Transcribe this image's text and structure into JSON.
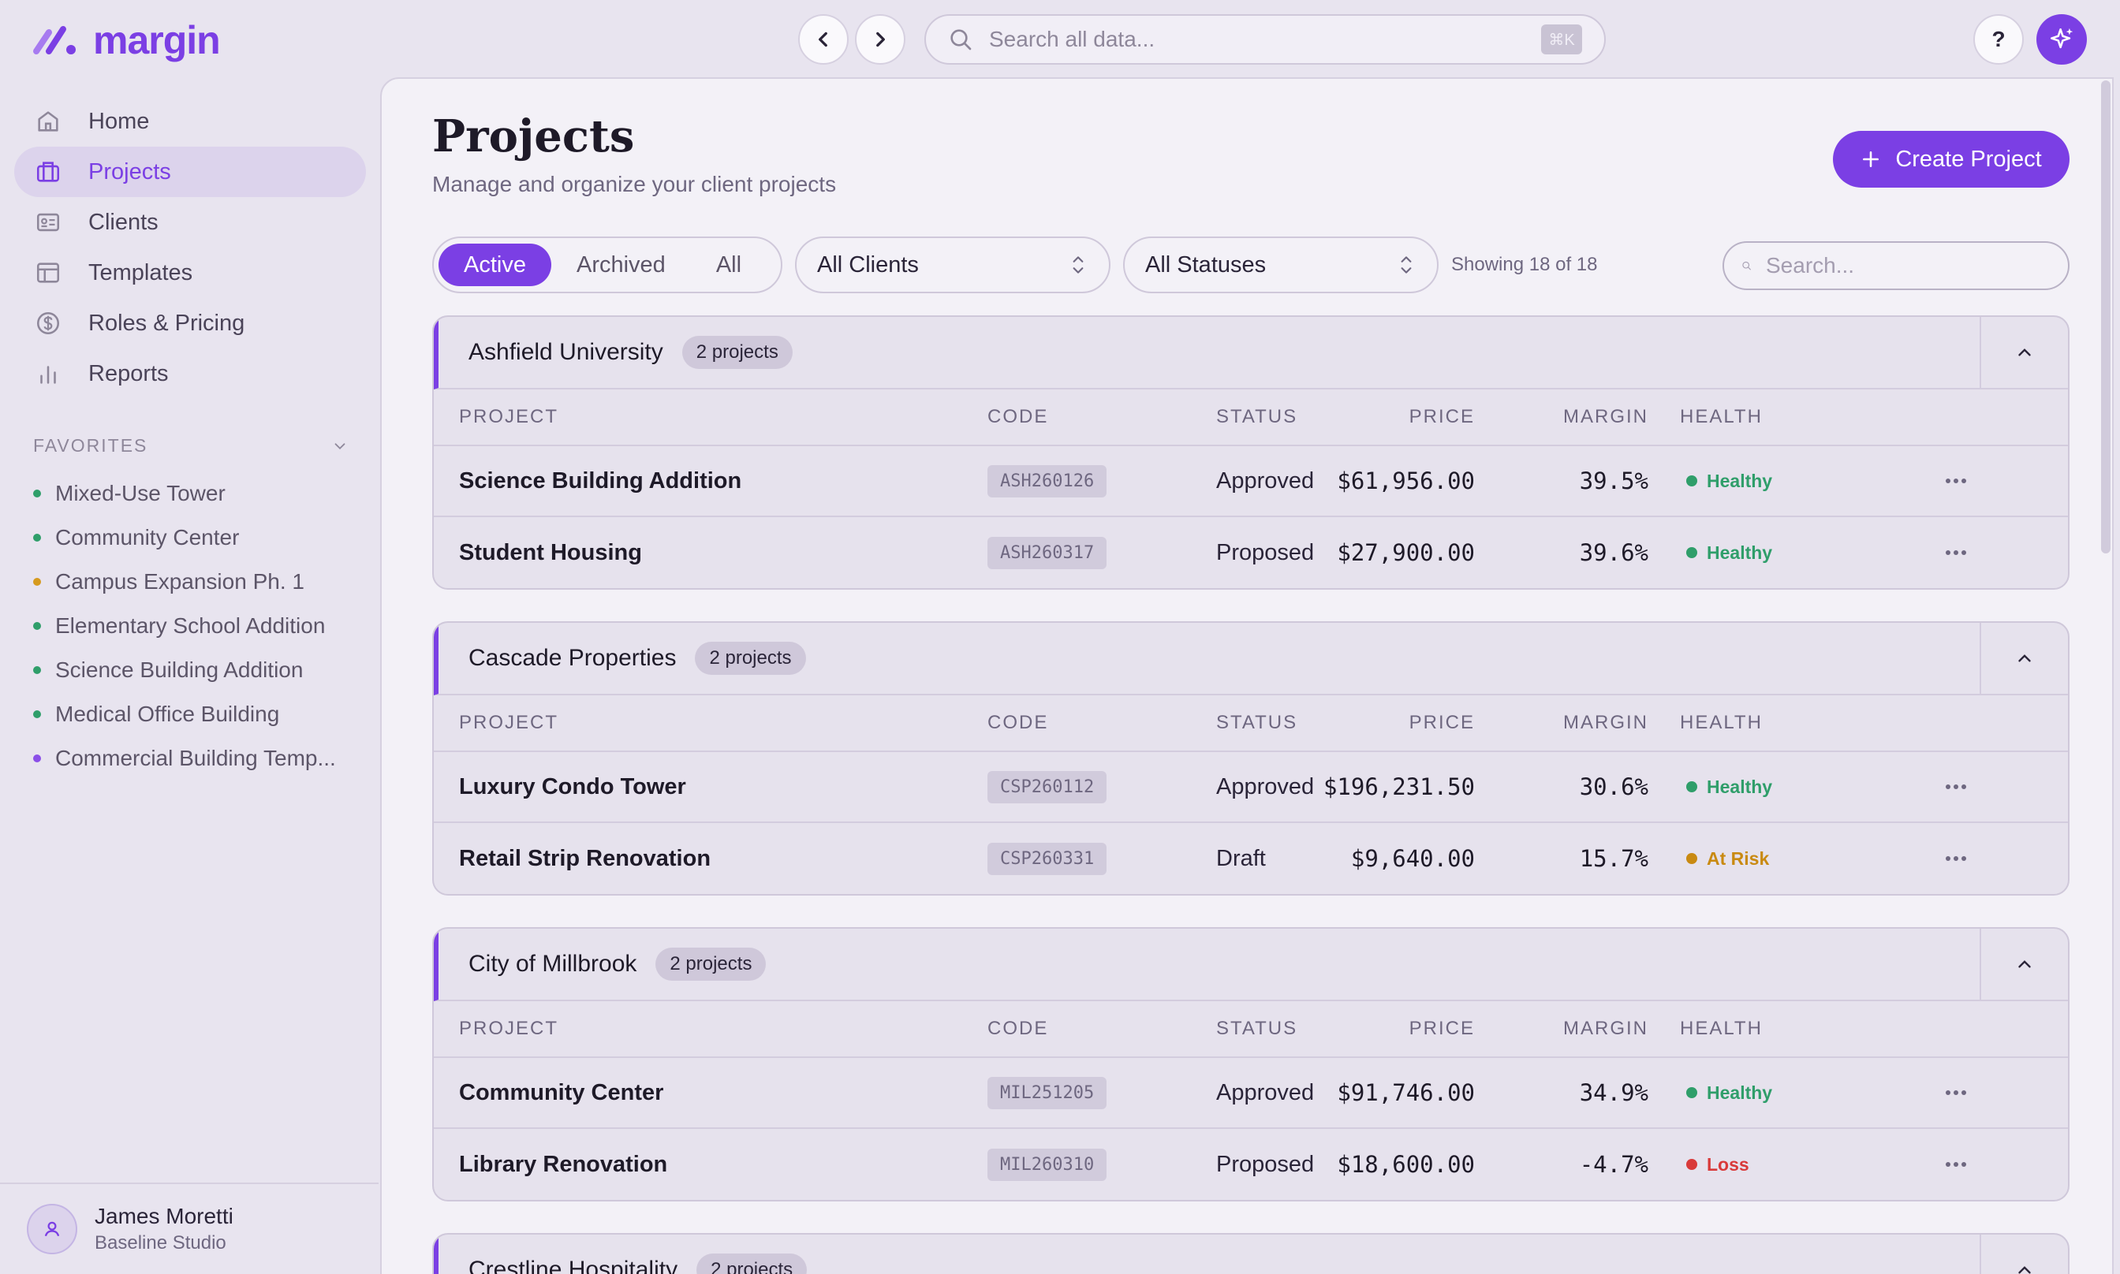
{
  "app": {
    "logo_text": "margin",
    "brand_color": "#7b3fe4",
    "search_placeholder": "Search all data...",
    "search_shortcut": "⌘K",
    "help_label": "?"
  },
  "sidebar": {
    "items": [
      {
        "label": "Home",
        "icon": "home-icon"
      },
      {
        "label": "Projects",
        "icon": "briefcase-icon",
        "active": true
      },
      {
        "label": "Clients",
        "icon": "id-card-icon"
      },
      {
        "label": "Templates",
        "icon": "template-icon"
      },
      {
        "label": "Roles & Pricing",
        "icon": "dollar-circle-icon"
      },
      {
        "label": "Reports",
        "icon": "bar-chart-icon"
      }
    ],
    "favorites_header": "FAVORITES",
    "favorites": [
      {
        "label": "Mixed-Use Tower",
        "dot": "#2f9e6a"
      },
      {
        "label": "Community Center",
        "dot": "#2f9e6a"
      },
      {
        "label": "Campus Expansion Ph. 1",
        "dot": "#d69a1f"
      },
      {
        "label": "Elementary School Addition",
        "dot": "#2f9e6a"
      },
      {
        "label": "Science Building Addition",
        "dot": "#2f9e6a"
      },
      {
        "label": "Medical Office Building",
        "dot": "#2f9e6a"
      },
      {
        "label": "Commercial Building Temp...",
        "dot": "#8b4fe8"
      }
    ],
    "user": {
      "name": "James Moretti",
      "org": "Baseline Studio"
    }
  },
  "main": {
    "title": "Projects",
    "subtitle": "Manage and organize your client projects",
    "create_label": "Create Project",
    "tabs": [
      {
        "label": "Active",
        "active": true
      },
      {
        "label": "Archived"
      },
      {
        "label": "All"
      }
    ],
    "client_filter": "All Clients",
    "status_filter": "All Statuses",
    "showing": "Showing 18 of 18",
    "search_placeholder": "Search...",
    "columns": {
      "project": "PROJECT",
      "code": "CODE",
      "status": "STATUS",
      "price": "PRICE",
      "margin": "MARGIN",
      "health": "HEALTH"
    },
    "health_colors": {
      "Healthy": "#2f9e6a",
      "At Risk": "#c98a12",
      "Loss": "#d93a3a"
    },
    "groups": [
      {
        "client": "Ashfield University",
        "count": "2 projects",
        "rows": [
          {
            "project": "Science Building Addition",
            "code": "ASH260126",
            "status": "Approved",
            "price": "$61,956.00",
            "margin": "39.5%",
            "health": "Healthy"
          },
          {
            "project": "Student Housing",
            "code": "ASH260317",
            "status": "Proposed",
            "price": "$27,900.00",
            "margin": "39.6%",
            "health": "Healthy"
          }
        ]
      },
      {
        "client": "Cascade Properties",
        "count": "2 projects",
        "rows": [
          {
            "project": "Luxury Condo Tower",
            "code": "CSP260112",
            "status": "Approved",
            "price": "$196,231.50",
            "margin": "30.6%",
            "health": "Healthy"
          },
          {
            "project": "Retail Strip Renovation",
            "code": "CSP260331",
            "status": "Draft",
            "price": "$9,640.00",
            "margin": "15.7%",
            "health": "At Risk"
          }
        ]
      },
      {
        "client": "City of Millbrook",
        "count": "2 projects",
        "rows": [
          {
            "project": "Community Center",
            "code": "MIL251205",
            "status": "Approved",
            "price": "$91,746.00",
            "margin": "34.9%",
            "health": "Healthy"
          },
          {
            "project": "Library Renovation",
            "code": "MIL260310",
            "status": "Proposed",
            "price": "$18,600.00",
            "margin": "-4.7%",
            "health": "Loss"
          }
        ]
      },
      {
        "client": "Crestline Hospitality",
        "count": "2 projects",
        "rows": []
      }
    ]
  }
}
